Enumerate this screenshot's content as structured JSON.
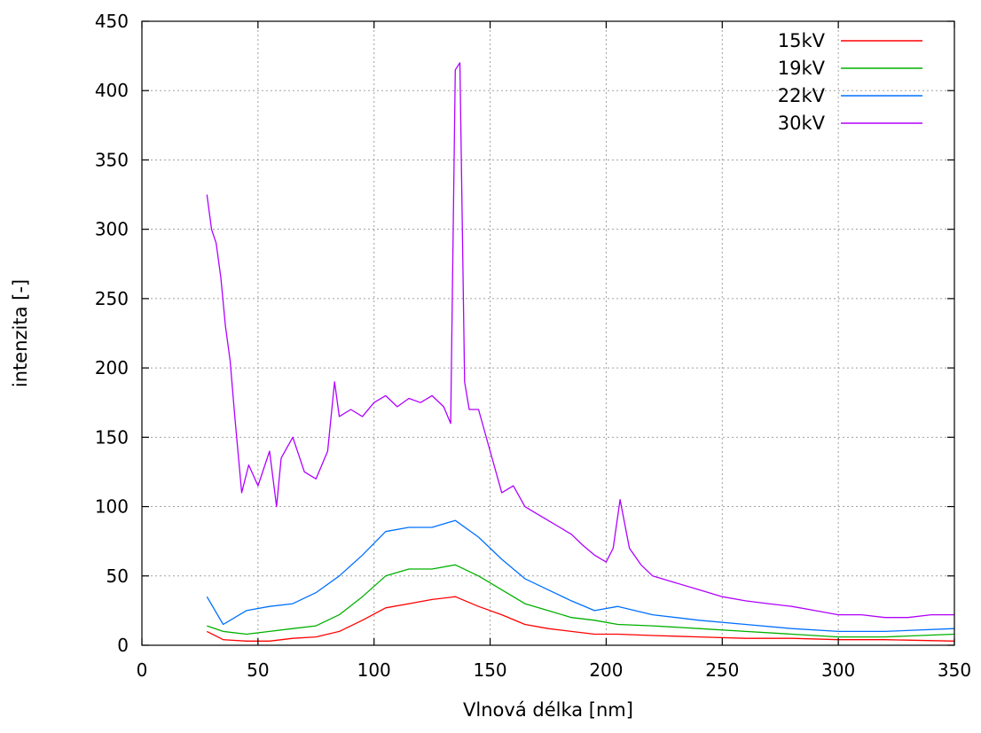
{
  "chart_data": {
    "type": "line",
    "title": "",
    "xlabel": "Vlnová délka [nm]",
    "ylabel": "intenzita [-]",
    "xlim": [
      0,
      350
    ],
    "ylim": [
      0,
      450
    ],
    "x_ticks": [
      0,
      50,
      100,
      150,
      200,
      250,
      300,
      350
    ],
    "y_ticks": [
      0,
      50,
      100,
      150,
      200,
      250,
      300,
      350,
      400,
      450
    ],
    "grid": true,
    "legend_position": "top-right",
    "series": [
      {
        "name": "15kV",
        "color": "#ff0000",
        "x": [
          28,
          35,
          45,
          55,
          65,
          75,
          85,
          95,
          105,
          115,
          125,
          135,
          145,
          155,
          165,
          175,
          185,
          195,
          205,
          220,
          240,
          260,
          280,
          300,
          320,
          350
        ],
        "y": [
          10,
          4,
          3,
          3,
          5,
          6,
          10,
          18,
          27,
          30,
          33,
          35,
          28,
          22,
          15,
          12,
          10,
          8,
          8,
          7,
          6,
          5,
          5,
          4,
          4,
          3
        ]
      },
      {
        "name": "19kV",
        "color": "#00b000",
        "x": [
          28,
          35,
          45,
          55,
          65,
          75,
          85,
          95,
          105,
          115,
          125,
          135,
          145,
          155,
          165,
          175,
          185,
          195,
          205,
          220,
          240,
          260,
          280,
          300,
          320,
          350
        ],
        "y": [
          14,
          10,
          8,
          10,
          12,
          14,
          22,
          35,
          50,
          55,
          55,
          58,
          50,
          40,
          30,
          25,
          20,
          18,
          15,
          14,
          12,
          10,
          8,
          6,
          6,
          8
        ]
      },
      {
        "name": "22kV",
        "color": "#0070ff",
        "x": [
          28,
          35,
          45,
          55,
          65,
          75,
          85,
          95,
          105,
          115,
          125,
          135,
          145,
          155,
          165,
          175,
          185,
          195,
          205,
          220,
          240,
          260,
          280,
          300,
          320,
          350
        ],
        "y": [
          35,
          15,
          25,
          28,
          30,
          38,
          50,
          65,
          82,
          85,
          85,
          90,
          78,
          62,
          48,
          40,
          32,
          25,
          28,
          22,
          18,
          15,
          12,
          10,
          10,
          12
        ]
      },
      {
        "name": "30kV",
        "color": "#b000ff",
        "x": [
          28,
          30,
          32,
          34,
          36,
          38,
          40,
          43,
          46,
          50,
          55,
          58,
          60,
          65,
          70,
          75,
          80,
          83,
          85,
          90,
          95,
          100,
          105,
          110,
          115,
          120,
          125,
          130,
          133,
          135,
          137,
          139,
          141,
          145,
          150,
          155,
          160,
          165,
          170,
          175,
          180,
          185,
          190,
          195,
          200,
          203,
          206,
          210,
          215,
          220,
          230,
          240,
          250,
          260,
          270,
          280,
          290,
          300,
          310,
          320,
          330,
          340,
          350
        ],
        "y": [
          325,
          300,
          290,
          265,
          230,
          205,
          165,
          110,
          130,
          115,
          140,
          100,
          135,
          150,
          125,
          120,
          140,
          190,
          165,
          170,
          165,
          175,
          180,
          172,
          178,
          175,
          180,
          172,
          160,
          415,
          420,
          190,
          170,
          170,
          140,
          110,
          115,
          100,
          95,
          90,
          85,
          80,
          72,
          65,
          60,
          70,
          105,
          70,
          58,
          50,
          45,
          40,
          35,
          32,
          30,
          28,
          25,
          22,
          22,
          20,
          20,
          22,
          22
        ]
      }
    ]
  }
}
